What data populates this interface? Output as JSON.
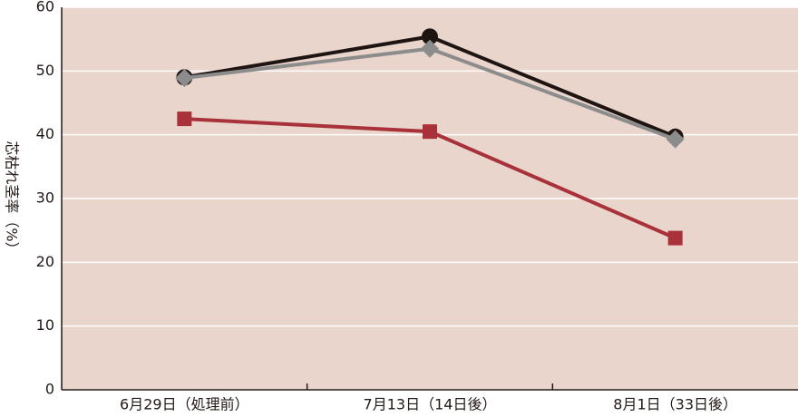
{
  "chart_data": {
    "type": "line",
    "y_label": "芯枯れ茎率（%）",
    "categories": [
      "6月29日（処理前）",
      "7月13日（14日後）",
      "8月1日（33日後）"
    ],
    "series": [
      {
        "color": "#1e1412",
        "marker": "circle",
        "values": [
          49,
          55.4,
          39.7
        ]
      },
      {
        "color": "#8c8c8c",
        "marker": "diamond",
        "values": [
          48.9,
          53.5,
          39.3
        ]
      },
      {
        "color": "#a8313a",
        "marker": "square",
        "values": [
          42.5,
          40.5,
          23.8
        ]
      }
    ],
    "ylim": [
      0,
      60
    ],
    "yticks": [
      0,
      10,
      20,
      30,
      40,
      50,
      60
    ],
    "grid": true,
    "background": "#e9d5cc"
  }
}
